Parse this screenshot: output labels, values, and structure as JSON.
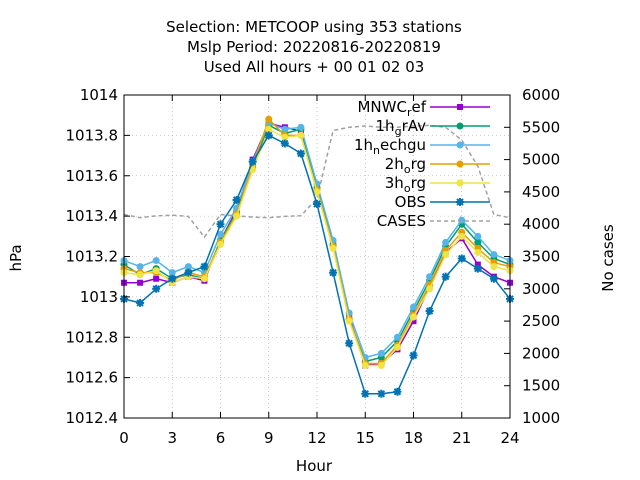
{
  "chart_data": {
    "type": "line",
    "title_lines": [
      "Selection: METCOOP using   353 stations",
      "Mslp   Period: 20220816-20220819",
      "Used  All hours  + 00 01 02 03"
    ],
    "xlabel": "Hour",
    "ylabel": "hPa",
    "y2label": "No cases",
    "xlim": [
      0,
      24
    ],
    "ylim": [
      1012.4,
      1014
    ],
    "y2lim": [
      1000,
      6000
    ],
    "xticks": [
      0,
      3,
      6,
      9,
      12,
      15,
      18,
      21,
      24
    ],
    "yticks": [
      {
        "v": 1012.4,
        "label": "1012.4"
      },
      {
        "v": 1012.6,
        "label": "1012.6"
      },
      {
        "v": 1012.8,
        "label": "1012.8"
      },
      {
        "v": 1013.0,
        "label": "1013"
      },
      {
        "v": 1013.2,
        "label": "1013.2"
      },
      {
        "v": 1013.4,
        "label": "1013.4"
      },
      {
        "v": 1013.6,
        "label": "1013.6"
      },
      {
        "v": 1013.8,
        "label": "1013.8"
      },
      {
        "v": 1014.0,
        "label": "1014"
      }
    ],
    "y2ticks": [
      1000,
      1500,
      2000,
      2500,
      3000,
      3500,
      4000,
      4500,
      5000,
      5500,
      6000
    ],
    "grid": true,
    "legend_position": "top-right",
    "x": [
      0,
      1,
      2,
      3,
      4,
      5,
      6,
      7,
      8,
      9,
      10,
      11,
      12,
      13,
      14,
      15,
      16,
      17,
      18,
      19,
      20,
      21,
      22,
      23,
      24
    ],
    "series": [
      {
        "name": "MNWC_ref",
        "legend_main": "MNWC",
        "legend_sub": "r",
        "legend_tail": "ef",
        "color": "#9400d3",
        "marker": "square",
        "values": [
          1013.07,
          1013.07,
          1013.09,
          1013.07,
          1013.1,
          1013.08,
          1013.28,
          1013.43,
          1013.68,
          1013.86,
          1013.84,
          1013.82,
          1013.55,
          1013.26,
          1012.9,
          1012.66,
          1012.67,
          1012.74,
          1012.88,
          1013.05,
          1013.22,
          1013.29,
          1013.16,
          1013.1,
          1013.07
        ],
        "axis": "y"
      },
      {
        "name": "1h_grAv",
        "legend_main": "1h",
        "legend_sub": "g",
        "legend_tail": "rAv",
        "color": "#009e73",
        "marker": "circle",
        "values": [
          1013.16,
          1013.11,
          1013.14,
          1013.09,
          1013.11,
          1013.09,
          1013.28,
          1013.42,
          1013.64,
          1013.85,
          1013.81,
          1013.83,
          1013.54,
          1013.26,
          1012.89,
          1012.68,
          1012.7,
          1012.78,
          1012.93,
          1013.08,
          1013.25,
          1013.36,
          1013.27,
          1013.19,
          1013.16
        ],
        "axis": "y"
      },
      {
        "name": "1h_nechgu",
        "legend_main": "1h",
        "legend_sub": "n",
        "legend_tail": "echgu",
        "color": "#56b4e9",
        "marker": "circle",
        "values": [
          1013.18,
          1013.15,
          1013.18,
          1013.12,
          1013.15,
          1013.12,
          1013.31,
          1013.44,
          1013.67,
          1013.86,
          1013.83,
          1013.84,
          1013.56,
          1013.28,
          1012.92,
          1012.7,
          1012.72,
          1012.8,
          1012.95,
          1013.1,
          1013.27,
          1013.38,
          1013.3,
          1013.21,
          1013.18
        ],
        "axis": "y"
      },
      {
        "name": "2h_org",
        "legend_main": "2h",
        "legend_sub": "o",
        "legend_tail": "rg",
        "color": "#e69f00",
        "marker": "circle",
        "values": [
          1013.14,
          1013.12,
          1013.12,
          1013.08,
          1013.12,
          1013.1,
          1013.27,
          1013.41,
          1013.65,
          1013.88,
          1013.8,
          1013.8,
          1013.53,
          1013.25,
          1012.89,
          1012.67,
          1012.67,
          1012.76,
          1012.91,
          1013.06,
          1013.23,
          1013.32,
          1013.24,
          1013.17,
          1013.15
        ],
        "axis": "y"
      },
      {
        "name": "3h_org",
        "legend_main": "3h",
        "legend_sub": "o",
        "legend_tail": "rg",
        "color": "#f0e442",
        "marker": "circle",
        "values": [
          1013.12,
          1013.11,
          1013.13,
          1013.07,
          1013.1,
          1013.09,
          1013.26,
          1013.4,
          1013.63,
          1013.83,
          1013.79,
          1013.8,
          1013.52,
          1013.24,
          1012.88,
          1012.66,
          1012.66,
          1012.75,
          1012.9,
          1013.04,
          1013.21,
          1013.3,
          1013.22,
          1013.15,
          1013.13
        ],
        "axis": "y"
      },
      {
        "name": "OBS",
        "legend_main": "OBS",
        "legend_sub": "",
        "legend_tail": "",
        "color": "#0072b2",
        "marker": "star",
        "values": [
          1012.99,
          1012.97,
          1013.04,
          1013.09,
          1013.12,
          1013.15,
          1013.36,
          1013.48,
          1013.67,
          1013.8,
          1013.76,
          1013.71,
          1013.46,
          1013.12,
          1012.77,
          1012.52,
          1012.52,
          1012.53,
          1012.71,
          1012.93,
          1013.1,
          1013.19,
          1013.14,
          1013.09,
          1012.99
        ],
        "axis": "y"
      },
      {
        "name": "CASES",
        "legend_main": "CASES",
        "legend_sub": "",
        "legend_tail": "",
        "color": "#a0a0a0",
        "marker": "none",
        "dashed": true,
        "values": [
          4150,
          4100,
          4130,
          4140,
          4120,
          3800,
          4150,
          4130,
          4110,
          4100,
          4120,
          4130,
          4400,
          5450,
          5500,
          5520,
          5500,
          5500,
          5520,
          5530,
          5500,
          5300,
          4900,
          4150,
          4100
        ],
        "axis": "y2"
      }
    ]
  }
}
